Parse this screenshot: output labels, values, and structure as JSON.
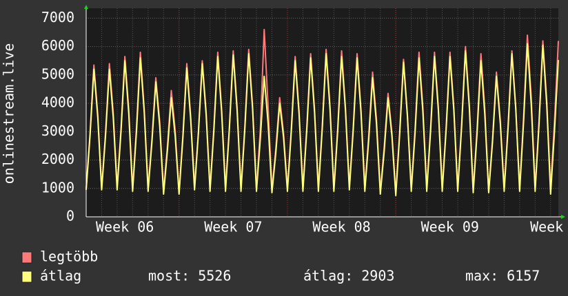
{
  "chart_data": {
    "type": "line",
    "y_label": "onlinestream.live",
    "categories": [
      null,
      null,
      null,
      null,
      null,
      null,
      null,
      null,
      null,
      null,
      "Week 06",
      null,
      null,
      null,
      null,
      null,
      null,
      null,
      null,
      null,
      null,
      null,
      null,
      null,
      null,
      null,
      null,
      null,
      null,
      null,
      null,
      null,
      null,
      null,
      null,
      null,
      null,
      null,
      "Week 07",
      null,
      null,
      null,
      null,
      null,
      null,
      null,
      null,
      null,
      null,
      null,
      null,
      null,
      null,
      null,
      null,
      null,
      null,
      null,
      null,
      null,
      null,
      null,
      null,
      null,
      null,
      null,
      "Week 08",
      null,
      null,
      null,
      null,
      null,
      null,
      null,
      null,
      null,
      null,
      null,
      null,
      null,
      null,
      null,
      null,
      null,
      null,
      null,
      null,
      null,
      null,
      null,
      null,
      null,
      null,
      null,
      "Week 09",
      null,
      null,
      null,
      null,
      null,
      null,
      null,
      null,
      null,
      null,
      null,
      null,
      null,
      null,
      null,
      null,
      null,
      null,
      null,
      null,
      null,
      null,
      null,
      null,
      "Week",
      null,
      null,
      null
    ],
    "series": [
      {
        "name": "legtöbb",
        "color": "#ff7b7b",
        "values": [
          1000,
          2950,
          5350,
          3600,
          1000,
          2950,
          5400,
          3650,
          1050,
          3100,
          5650,
          3800,
          1000,
          3150,
          5800,
          3800,
          1000,
          2750,
          4900,
          3350,
          900,
          2500,
          4450,
          3050,
          850,
          2900,
          5400,
          3550,
          1050,
          3000,
          5500,
          3700,
          1000,
          3150,
          5800,
          3800,
          1000,
          3150,
          5850,
          3850,
          1000,
          3200,
          5900,
          3900,
          950,
          3100,
          6600,
          3900,
          950,
          2400,
          4200,
          2950,
          1000,
          3100,
          5650,
          3750,
          1000,
          3150,
          5750,
          3800,
          1000,
          3200,
          5900,
          3900,
          1000,
          3150,
          5850,
          3850,
          1050,
          3150,
          5750,
          3800,
          1000,
          2850,
          5100,
          3450,
          900,
          2450,
          4350,
          2950,
          850,
          3000,
          5550,
          3600,
          1000,
          3150,
          5800,
          3850,
          1000,
          3150,
          5800,
          3850,
          1000,
          3150,
          5800,
          3850,
          1000,
          3250,
          6000,
          3950,
          950,
          3100,
          5750,
          3800,
          900,
          2750,
          5100,
          3400,
          1000,
          3200,
          5850,
          3850,
          1000,
          3450,
          6400,
          4200,
          1000,
          3350,
          6200,
          4100,
          1000,
          3350,
          6200
        ]
      },
      {
        "name": "átlag",
        "color": "#ffff80",
        "values": [
          950,
          2850,
          5200,
          3500,
          950,
          2850,
          5200,
          3500,
          950,
          3000,
          5500,
          3650,
          900,
          3000,
          5600,
          3700,
          900,
          2650,
          4750,
          3200,
          800,
          2350,
          4200,
          2850,
          800,
          2800,
          5250,
          3450,
          950,
          2950,
          5400,
          3600,
          900,
          3050,
          5650,
          3700,
          900,
          3100,
          5700,
          3750,
          900,
          3100,
          5750,
          3800,
          900,
          2750,
          4950,
          3300,
          850,
          2250,
          4000,
          2800,
          900,
          3000,
          5500,
          3650,
          900,
          3050,
          5600,
          3700,
          900,
          3100,
          5750,
          3800,
          900,
          3050,
          5650,
          3750,
          950,
          3050,
          5600,
          3700,
          900,
          2700,
          4900,
          3300,
          800,
          2300,
          4200,
          2850,
          750,
          2900,
          5450,
          3550,
          900,
          3000,
          5600,
          3700,
          900,
          3050,
          5650,
          3750,
          900,
          3050,
          5650,
          3750,
          900,
          3150,
          5850,
          3850,
          850,
          2950,
          5500,
          3600,
          850,
          2650,
          4950,
          3300,
          900,
          3100,
          5750,
          3800,
          900,
          3300,
          6100,
          3950,
          900,
          3250,
          6050,
          3950,
          800,
          3000,
          5526
        ]
      }
    ],
    "ylim": [
      0,
      7350
    ],
    "yticks": [
      0,
      1000,
      2000,
      3000,
      4000,
      5000,
      6000,
      7000
    ],
    "grid": true,
    "stats": [
      {
        "label": "most:",
        "value": 5526
      },
      {
        "label": "átlag:",
        "value": 2903
      },
      {
        "label": "max:",
        "value": 6157
      }
    ]
  }
}
